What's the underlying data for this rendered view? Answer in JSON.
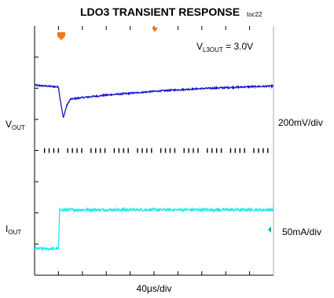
{
  "title": "LDO3 TRANSIENT RESPONSE",
  "figure_tag": "toc22",
  "condition": {
    "prefix": "V",
    "sub": "L3OUT",
    "value": " = 3.0V"
  },
  "labels": {
    "vout": {
      "main": "V",
      "sub": "OUT"
    },
    "iout": {
      "main": "I",
      "sub": "OUT"
    },
    "vout_scale": "200mV/div",
    "iout_scale": "50mA/div",
    "time_scale": "40μs/div"
  },
  "colors": {
    "vout_trace": "#1414d2",
    "iout_trace": "#22e8e8",
    "trigger_marker": "#f07818",
    "ground_marker": "#0aa6a6"
  },
  "chart_data": {
    "type": "line",
    "title": "LDO3 TRANSIENT RESPONSE",
    "xlabel": "40μs/div",
    "x_divisions": 10,
    "y_divisions": 8,
    "x_unit": "div",
    "series": [
      {
        "name": "VOUT",
        "scale": "200mV/div",
        "x": [
          0,
          0.3,
          0.7,
          1.0,
          1.05,
          1.2,
          1.35,
          1.5,
          2,
          3,
          4,
          5,
          6,
          7,
          8,
          9,
          10
        ],
        "y": [
          6.1,
          6.08,
          6.06,
          6.04,
          5.75,
          5.05,
          5.45,
          5.65,
          5.7,
          5.78,
          5.84,
          5.9,
          5.95,
          5.99,
          6.02,
          6.05,
          6.07
        ]
      },
      {
        "name": "IOUT",
        "scale": "50mA/div",
        "x": [
          0,
          0.95,
          1.0,
          1.05,
          10
        ],
        "y": [
          0.85,
          0.85,
          0.85,
          2.1,
          2.1
        ]
      }
    ]
  }
}
